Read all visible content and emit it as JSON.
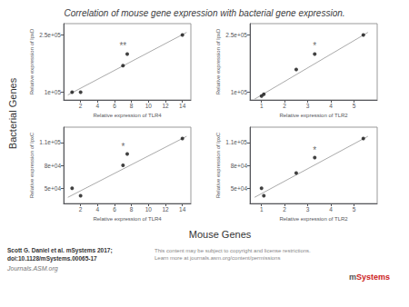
{
  "title": "Correlation of mouse gene expression with bacterial gene expression.",
  "xlabel": "Mouse Genes",
  "ylabel": "Bacterial Genes",
  "annotations": [
    {
      "text": "Scott G. Daniel et al. mSystems 2017;"
    },
    {
      "text": "doi:10.1128/mSystems.00065-17"
    },
    {
      "text": "Journals.ASM.org"
    },
    {
      "text": "This content may be subject to copyright and license restrictions.\nLearn more at journals.asm.org/content/permissions"
    },
    {
      "text": "m"
    },
    {
      "text": "Systems"
    }
  ],
  "chart_data": [
    {
      "type": "scatter",
      "xlabel": "Relative expression of TLR4",
      "ylabel": "Relative expression of lpxD",
      "xlim": [
        0,
        15
      ],
      "ylim": [
        80000,
        280000
      ],
      "xticks": [
        2,
        4,
        6,
        8,
        10,
        12,
        14
      ],
      "yticks": [
        {
          "value": 100000,
          "label": "1e+05"
        },
        {
          "value": 250000,
          "label": "2.5e+05"
        }
      ],
      "grid": false,
      "series": [
        {
          "type": "line",
          "x": [
            0.5,
            14.5
          ],
          "values": [
            93000,
            257000
          ],
          "color": "#aaaaaa"
        },
        {
          "type": "scatter",
          "x": [
            1,
            2,
            7,
            7.5,
            14
          ],
          "values": [
            100000,
            100000,
            170000,
            200000,
            250000
          ],
          "color": "#111111"
        }
      ],
      "annotations": [
        {
          "text": "**",
          "x": 7.0,
          "y": 210000,
          "color": "#444444"
        }
      ]
    },
    {
      "type": "scatter",
      "xlabel": "Relative expression of TLR2",
      "ylabel": "Relative expression of lpxD",
      "xlim": [
        0.5,
        6
      ],
      "ylim": [
        80000,
        280000
      ],
      "xticks": [
        1,
        2,
        3,
        4,
        5
      ],
      "yticks": [
        {
          "value": 100000,
          "label": "1e+05"
        },
        {
          "value": 250000,
          "label": "2.5e+05"
        }
      ],
      "grid": false,
      "series": [
        {
          "type": "line",
          "x": [
            0.7,
            5.6
          ],
          "values": [
            82000,
            257000
          ],
          "color": "#aaaaaa"
        },
        {
          "type": "scatter",
          "x": [
            1,
            1.1,
            2.5,
            3.3,
            5.4
          ],
          "values": [
            90000,
            95000,
            160000,
            200000,
            250000
          ],
          "color": "#111111"
        }
      ],
      "annotations": [
        {
          "text": "*",
          "x": 3.3,
          "y": 210000,
          "color": "#444444"
        }
      ]
    },
    {
      "type": "scatter",
      "xlabel": "Relative expression of TLR4",
      "ylabel": "Relative expression of lpxC",
      "xlim": [
        0,
        15
      ],
      "ylim": [
        30000,
        130000
      ],
      "xticks": [
        2,
        4,
        6,
        8,
        10,
        12,
        14
      ],
      "yticks": [
        {
          "value": 50000,
          "label": "5e+04"
        },
        {
          "value": 80000,
          "label": "8e+04"
        },
        {
          "value": 110000,
          "label": "1.1e+05"
        }
      ],
      "grid": false,
      "series": [
        {
          "type": "line",
          "x": [
            0.5,
            14.5
          ],
          "values": [
            38000,
            118000
          ],
          "color": "#aaaaaa"
        },
        {
          "type": "scatter",
          "x": [
            1,
            2,
            7,
            7.5,
            14
          ],
          "values": [
            50000,
            40000,
            80000,
            95000,
            115000
          ],
          "color": "#111111"
        }
      ],
      "annotations": [
        {
          "text": "*",
          "x": 7.0,
          "y": 99000,
          "color": "#444444"
        }
      ]
    },
    {
      "type": "scatter",
      "xlabel": "Relative expression of TLR2",
      "ylabel": "Relative expression of lpxC",
      "xlim": [
        0.5,
        6
      ],
      "ylim": [
        30000,
        130000
      ],
      "xticks": [
        1,
        2,
        3,
        4,
        5
      ],
      "yticks": [
        {
          "value": 50000,
          "label": "5e+04"
        },
        {
          "value": 80000,
          "label": "8e+04"
        },
        {
          "value": 110000,
          "label": "1.1e+05"
        }
      ],
      "grid": false,
      "series": [
        {
          "type": "line",
          "x": [
            0.7,
            5.6
          ],
          "values": [
            38000,
            118000
          ],
          "color": "#aaaaaa"
        },
        {
          "type": "scatter",
          "x": [
            1,
            1.1,
            2.5,
            3.3,
            5.4
          ],
          "values": [
            50000,
            40000,
            70000,
            90000,
            115000
          ],
          "color": "#111111"
        }
      ],
      "annotations": [
        {
          "text": "*",
          "x": 3.3,
          "y": 94000,
          "color": "#444444"
        }
      ]
    }
  ]
}
